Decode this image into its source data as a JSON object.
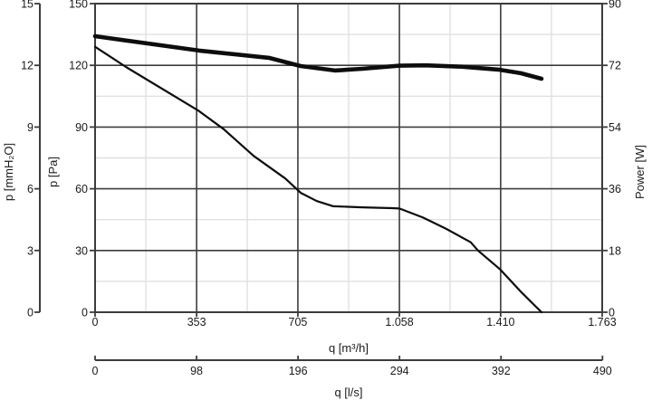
{
  "chart_data": {
    "type": "line",
    "title": "",
    "grid": "major-dark, minor-light",
    "colors": {
      "curve": "#0d0d0d",
      "axis": "#3c3c3c",
      "major_grid": "#3c3c3c",
      "minor_grid": "#e0e0e0",
      "background": "#ffffff",
      "text": "#1a1a1a"
    },
    "axes": {
      "left_outer": {
        "title": "p [mmH₂O]",
        "range": [
          0,
          15
        ],
        "tick_values": [
          0,
          3,
          6,
          9,
          12,
          15
        ],
        "tick_labels": [
          "0",
          "3",
          "6",
          "9",
          "12",
          "15"
        ]
      },
      "left_inner": {
        "title": "p [Pa]",
        "range": [
          0,
          150
        ],
        "tick_values": [
          0,
          30,
          60,
          90,
          120,
          150
        ],
        "tick_labels": [
          "0",
          "30",
          "60",
          "90",
          "120",
          "150"
        ]
      },
      "right": {
        "title": "Power [W]",
        "range": [
          0,
          90
        ],
        "tick_values": [
          0,
          18,
          36,
          54,
          72,
          90
        ],
        "tick_labels": [
          "0",
          "18",
          "36",
          "54",
          "72",
          "90"
        ]
      },
      "bottom_inner": {
        "title": "q [m³/h]",
        "range": [
          0,
          1763
        ],
        "tick_values": [
          0,
          353,
          705,
          1058,
          1410,
          1763
        ],
        "tick_labels": [
          "0",
          "353",
          "705",
          "1.058",
          "1.410",
          "1.763"
        ]
      },
      "bottom_outer": {
        "title": "q [l/s]",
        "range": [
          0,
          490
        ],
        "unit_scale_to_m3h": 3.6,
        "tick_values": [
          0,
          98,
          196,
          294,
          392,
          490
        ],
        "tick_labels": [
          "0",
          "98",
          "196",
          "294",
          "392",
          "490"
        ]
      }
    },
    "series": [
      {
        "name": "pressure-curve",
        "y_axis": "left_inner",
        "units": [
          "m3/h",
          "Pa"
        ],
        "stroke_width": 2.2,
        "points": [
          [
            0,
            129
          ],
          [
            110,
            119
          ],
          [
            359,
            98
          ],
          [
            447,
            89
          ],
          [
            551,
            76
          ],
          [
            661,
            65
          ],
          [
            715,
            58
          ],
          [
            771,
            54
          ],
          [
            828,
            51.5
          ],
          [
            929,
            51
          ],
          [
            1033,
            50.6
          ],
          [
            1058,
            50.4
          ],
          [
            1140,
            46
          ],
          [
            1221,
            40.5
          ],
          [
            1306,
            34
          ],
          [
            1331,
            30
          ],
          [
            1407,
            21
          ],
          [
            1480,
            10
          ],
          [
            1552,
            0
          ]
        ]
      },
      {
        "name": "power-curve",
        "y_axis": "right",
        "units": [
          "m3/h",
          "W"
        ],
        "stroke_width": 4.6,
        "points": [
          [
            0,
            80.5
          ],
          [
            362,
            76.3
          ],
          [
            604,
            74.2
          ],
          [
            715,
            71.8
          ],
          [
            834,
            70.5
          ],
          [
            929,
            71.0
          ],
          [
            1058,
            71.9
          ],
          [
            1149,
            72.0
          ],
          [
            1275,
            71.6
          ],
          [
            1407,
            70.7
          ],
          [
            1480,
            69.7
          ],
          [
            1552,
            68.1
          ]
        ]
      }
    ]
  }
}
